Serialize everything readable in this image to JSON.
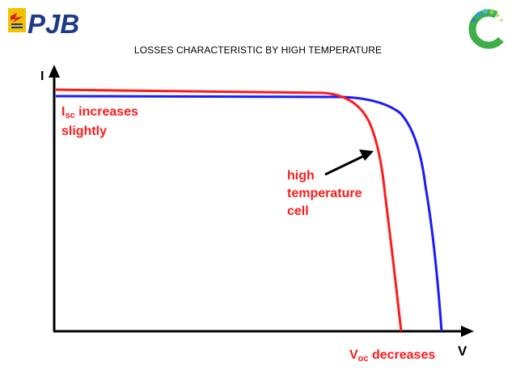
{
  "slide": {
    "title": "LOSSES CHARACTERISTIC BY HIGH TEMPERATURE",
    "logo_text": "PJB"
  },
  "diagram": {
    "y_axis_label": "I",
    "x_axis_label": "V",
    "isc_label": {
      "main": "I",
      "sub": "sc",
      "rest": " increases",
      "line2": "slightly"
    },
    "hot_cell_label": [
      "high",
      "temperature",
      "cell"
    ],
    "voc_label": {
      "main": "V",
      "sub": "oc",
      "rest": " decreases"
    },
    "colors": {
      "hot": "#ff1a1a",
      "normal": "#1a1aff",
      "axis": "#000000",
      "brand_blue": "#1e3a8a",
      "brand_yellow": "#f2c200"
    }
  }
}
